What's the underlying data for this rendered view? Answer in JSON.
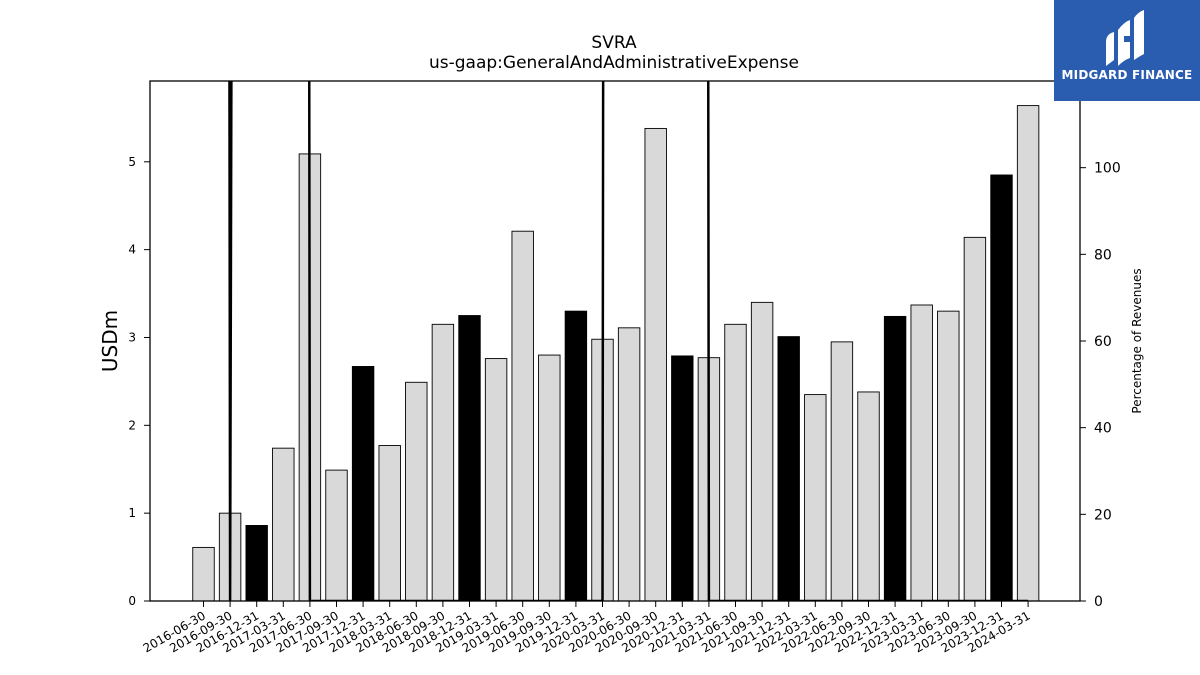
{
  "chart_data": {
    "type": "bar",
    "title": "SVRA",
    "subtitle": "us-gaap:GeneralAndAdministrativeExpense",
    "ylabel": "USDm",
    "ylabel_right": "Percentage of Revenues",
    "ylim": [
      0,
      5.92
    ],
    "ylim_right": [
      0,
      120
    ],
    "yticks": [
      0,
      1,
      2,
      3,
      4,
      5
    ],
    "yticks_right": [
      0,
      20,
      40,
      60,
      80,
      100
    ],
    "categories": [
      "2016-06-30",
      "2016-09-30",
      "2016-12-31",
      "2017-03-31",
      "2017-06-30",
      "2017-09-30",
      "2017-12-31",
      "2018-03-31",
      "2018-06-30",
      "2018-09-30",
      "2018-12-31",
      "2019-03-31",
      "2019-06-30",
      "2019-09-30",
      "2019-12-31",
      "2020-03-31",
      "2020-06-30",
      "2020-09-30",
      "2020-12-31",
      "2021-03-31",
      "2021-06-30",
      "2021-09-30",
      "2021-12-31",
      "2022-03-31",
      "2022-06-30",
      "2022-09-30",
      "2022-12-31",
      "2023-03-31",
      "2023-06-30",
      "2023-09-30",
      "2023-12-31",
      "2024-03-31"
    ],
    "values": [
      0.61,
      1.0,
      0.86,
      1.74,
      5.09,
      1.49,
      2.67,
      1.77,
      2.49,
      3.15,
      3.25,
      2.76,
      4.21,
      2.8,
      3.3,
      2.98,
      3.11,
      5.38,
      2.79,
      2.77,
      3.15,
      3.4,
      3.01,
      2.35,
      2.95,
      2.38,
      3.24,
      3.37,
      3.3,
      4.14,
      4.85,
      5.64
    ],
    "highlighted": [
      false,
      false,
      true,
      false,
      false,
      false,
      true,
      false,
      false,
      false,
      true,
      false,
      false,
      false,
      true,
      false,
      false,
      false,
      true,
      false,
      false,
      false,
      true,
      false,
      false,
      false,
      true,
      false,
      false,
      false,
      true,
      false
    ],
    "colors": {
      "bar": "#d9d9d9",
      "highlight": "#000000",
      "edge": "#000000",
      "line": "#000000"
    },
    "percent_of_revenues": {
      "series": [
        {
          "x": "2016-06-30",
          "y": 5000
        },
        {
          "x": "2016-09-30",
          "y": 0
        },
        {
          "x": "2017-03-31",
          "y": 5000
        },
        {
          "x": "2017-06-30",
          "y": 0
        },
        {
          "x": "2020-03-31",
          "y": 0
        },
        {
          "x": "2020-06-30",
          "y": 5000
        },
        {
          "x": "2020-12-31",
          "y": 5000
        },
        {
          "x": "2021-03-31",
          "y": 0
        },
        {
          "x": "2024-03-31",
          "y": 0
        }
      ]
    },
    "grid": false
  },
  "logo": {
    "text": "MIDGARD FINANCE",
    "color": "#2a5db0"
  }
}
